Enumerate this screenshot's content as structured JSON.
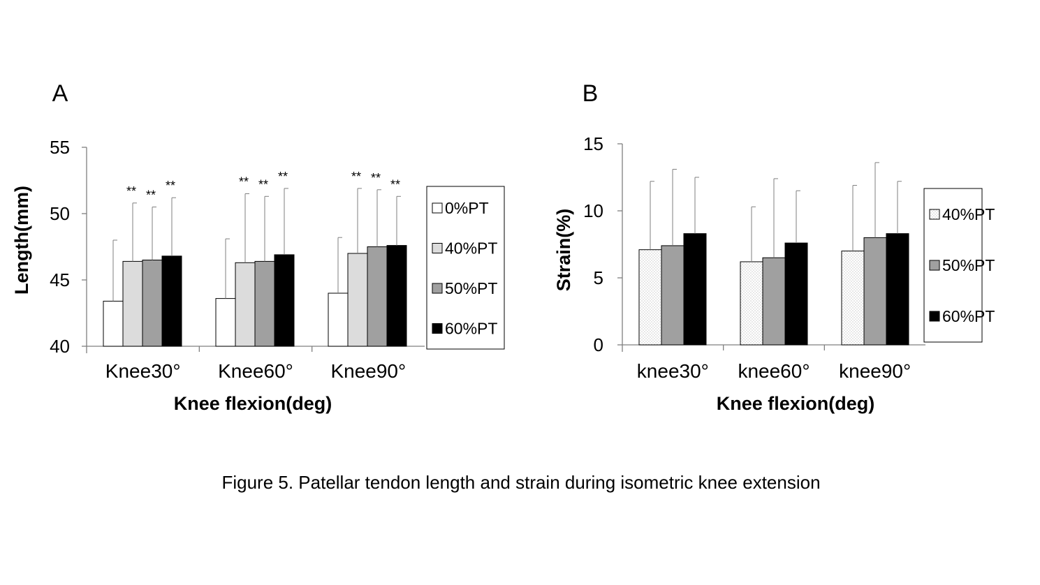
{
  "caption": "Figure 5. Patellar tendon length and strain during isometric knee extension",
  "chart_data": [
    {
      "panel": "A",
      "type": "bar",
      "ylabel": "Length(mm)",
      "xlabel": "Knee flexion(deg)",
      "ylim": [
        40,
        55
      ],
      "yticks": [
        "40",
        "45",
        "50",
        "55"
      ],
      "categories": [
        "Knee30°",
        "Knee60°",
        "Knee90°"
      ],
      "legend_position": "right",
      "series": [
        {
          "name": "0%PT",
          "fill": "#ffffff",
          "values": [
            43.4,
            43.6,
            44.0
          ],
          "error_upper": [
            48.0,
            48.1,
            48.2
          ],
          "significance": [
            "",
            "",
            ""
          ]
        },
        {
          "name": "40%PT",
          "fill": "#dcdcdc",
          "values": [
            46.4,
            46.3,
            47.0
          ],
          "error_upper": [
            50.8,
            51.5,
            51.9
          ],
          "significance": [
            "**",
            "**",
            "**"
          ]
        },
        {
          "name": "50%PT",
          "fill": "#a0a0a0",
          "values": [
            46.5,
            46.4,
            47.5
          ],
          "error_upper": [
            50.5,
            51.3,
            51.8
          ],
          "significance": [
            "**",
            "**",
            "**"
          ]
        },
        {
          "name": "60%PT",
          "fill": "#000000",
          "values": [
            46.8,
            46.9,
            47.6
          ],
          "error_upper": [
            51.2,
            51.9,
            51.3
          ],
          "significance": [
            "**",
            "**",
            "**"
          ]
        }
      ]
    },
    {
      "panel": "B",
      "type": "bar",
      "ylabel": "Strain(%)",
      "xlabel": "Knee flexion(deg)",
      "ylim": [
        0,
        15
      ],
      "yticks": [
        "0",
        "5",
        "10",
        "15"
      ],
      "categories": [
        "knee30°",
        "knee60°",
        "knee90°"
      ],
      "legend_position": "right",
      "series": [
        {
          "name": "40%PT",
          "fill": "#f0f0f0",
          "values": [
            7.1,
            6.2,
            7.0
          ],
          "error_upper": [
            12.2,
            10.3,
            11.9
          ],
          "significance": [
            "",
            "",
            ""
          ]
        },
        {
          "name": "50%PT",
          "fill": "#a0a0a0",
          "values": [
            7.4,
            6.5,
            8.0
          ],
          "error_upper": [
            13.1,
            12.4,
            13.6
          ],
          "significance": [
            "",
            "",
            ""
          ]
        },
        {
          "name": "60%PT",
          "fill": "#000000",
          "values": [
            8.3,
            7.6,
            8.3
          ],
          "error_upper": [
            12.5,
            11.5,
            12.2
          ],
          "significance": [
            "",
            "",
            ""
          ]
        }
      ]
    }
  ]
}
